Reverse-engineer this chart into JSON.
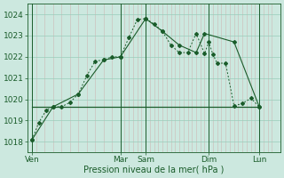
{
  "xlabel": "Pression niveau de la mer( hPa )",
  "bg_color": "#cce8df",
  "grid_major_color": "#99ccbb",
  "grid_minor_color": "#bbddcc",
  "line_color": "#1a5c2a",
  "ylim": [
    1017.5,
    1024.5
  ],
  "xlim": [
    0,
    30
  ],
  "day_labels": [
    "Ven",
    "Mar",
    "Sam",
    "Dim",
    "Lun"
  ],
  "day_positions": [
    0.5,
    11,
    14,
    21.5,
    27.5
  ],
  "vline_positions": [
    0.5,
    11,
    14,
    21.5,
    27.5
  ],
  "minor_vline_x": [
    1,
    2,
    3,
    4,
    5,
    6,
    7,
    8,
    9,
    10,
    11.5,
    12,
    12.5,
    13,
    13.5,
    14.5,
    15,
    15.5,
    16,
    16.5,
    17,
    17.5,
    18,
    18.5,
    19,
    19.5,
    20,
    20.5,
    21,
    22,
    22.5,
    23,
    23.5,
    24,
    24.5,
    25,
    25.5,
    26,
    26.5,
    27,
    28,
    28.5,
    29
  ],
  "series1_x": [
    0.5,
    1.3,
    2.2,
    3.0,
    4.0,
    5.0,
    6.0,
    7.0,
    8.0,
    9.0,
    10.0,
    11.0,
    12.0,
    13.0,
    14.0,
    15.0,
    16.0,
    17.0,
    18.0,
    19.0,
    20.0,
    21.0,
    21.5,
    22.0,
    22.5,
    23.5,
    24.5,
    25.5,
    26.5,
    27.5
  ],
  "series1_y": [
    1018.1,
    1018.9,
    1019.5,
    1019.65,
    1019.65,
    1019.85,
    1020.25,
    1021.1,
    1021.8,
    1021.85,
    1022.0,
    1022.0,
    1022.9,
    1023.75,
    1023.8,
    1023.55,
    1023.2,
    1022.55,
    1022.2,
    1022.2,
    1023.1,
    1022.15,
    1022.7,
    1022.1,
    1021.7,
    1021.7,
    1019.7,
    1019.8,
    1020.05,
    1019.65
  ],
  "series2_x": [
    0.5,
    3.0,
    6.0,
    9.0,
    11.0,
    14.0,
    16.0,
    18.0,
    20.0,
    21.0,
    24.5,
    27.5
  ],
  "series2_y": [
    1018.1,
    1019.65,
    1020.25,
    1021.85,
    1022.0,
    1023.8,
    1023.2,
    1022.55,
    1022.2,
    1023.1,
    1022.7,
    1019.65
  ],
  "series3_x": [
    0.5,
    27.5
  ],
  "series3_y": [
    1019.65,
    1019.65
  ],
  "yticks": [
    1018,
    1019,
    1020,
    1021,
    1022,
    1023,
    1024
  ],
  "xlabel_fontsize": 7,
  "tick_fontsize": 6.5
}
